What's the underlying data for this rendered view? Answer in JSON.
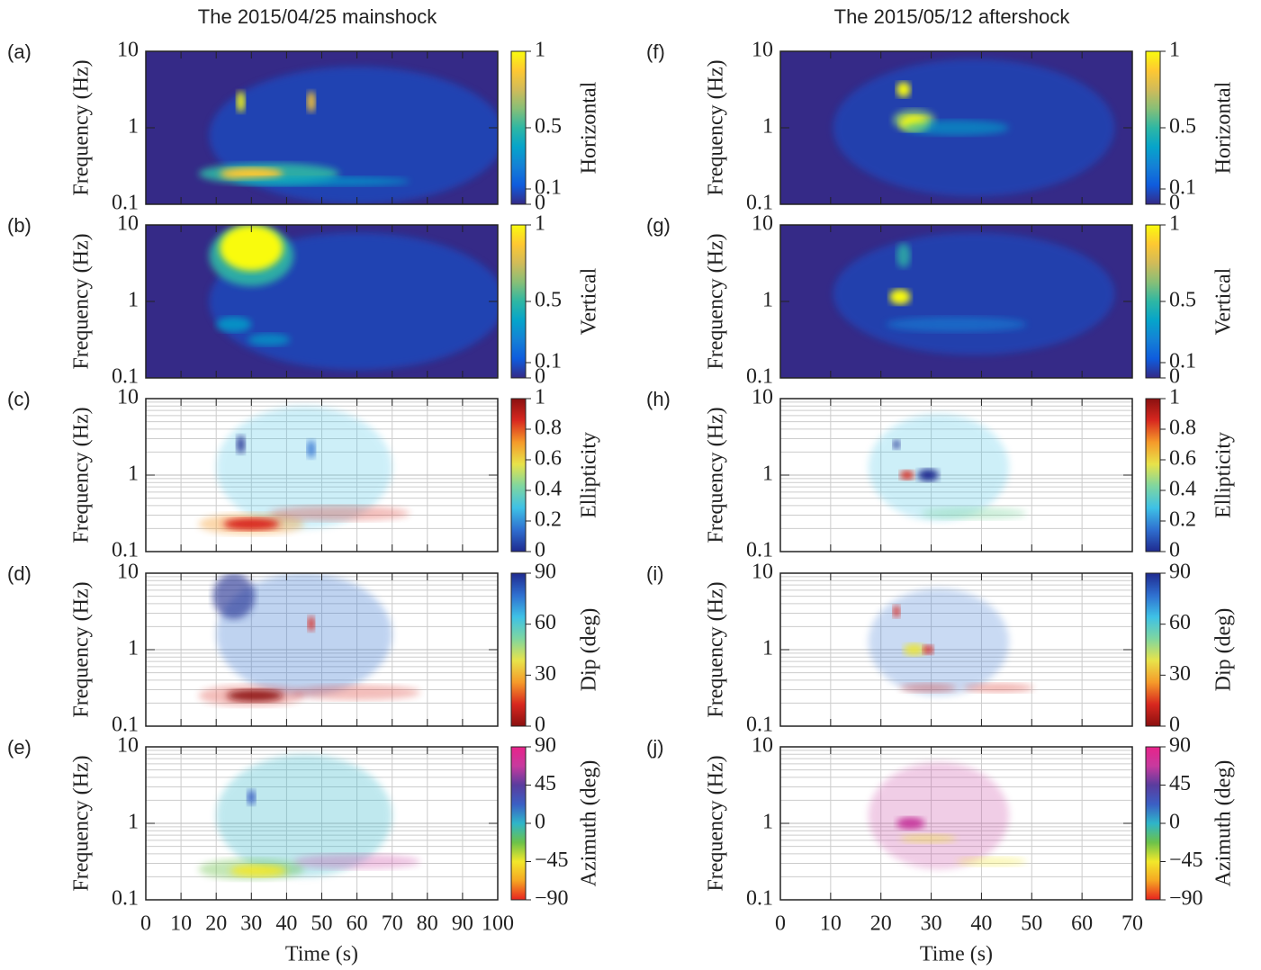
{
  "chart_data": [
    {
      "type": "heatmap",
      "title": "The 2015/04/25 mainshock",
      "xlabel": "Time (s)",
      "xlim": [
        0,
        100
      ],
      "xticks": [
        0,
        10,
        20,
        30,
        40,
        50,
        60,
        70,
        80,
        90,
        100
      ],
      "panels": [
        {
          "label": "(a)",
          "ylabel": "Frequency (Hz)",
          "ylim": [
            0.1,
            10
          ],
          "yticks": [
            0.1,
            1,
            10
          ],
          "log_y": true,
          "grid": false,
          "colorbar": {
            "label": "Horizontal",
            "lim": [
              0,
              1
            ],
            "ticks": [
              0,
              0.1,
              0.5,
              1
            ],
            "colormap": [
              "#352a87",
              "#0f5cdd",
              "#1481d6",
              "#06a4ca",
              "#2eb7a4",
              "#87bf77",
              "#d1bb59",
              "#fec832",
              "#f9fb0e"
            ]
          }
        },
        {
          "label": "(b)",
          "ylabel": "Frequency (Hz)",
          "ylim": [
            0.1,
            10
          ],
          "yticks": [
            0.1,
            1,
            10
          ],
          "log_y": true,
          "grid": false,
          "colorbar": {
            "label": "Vertical",
            "lim": [
              0,
              1
            ],
            "ticks": [
              0,
              0.1,
              0.5,
              1
            ],
            "colormap": [
              "#352a87",
              "#0f5cdd",
              "#1481d6",
              "#06a4ca",
              "#2eb7a4",
              "#87bf77",
              "#d1bb59",
              "#fec832",
              "#f9fb0e"
            ]
          }
        },
        {
          "label": "(c)",
          "ylabel": "Frequency (Hz)",
          "ylim": [
            0.1,
            10
          ],
          "yticks": [
            0.1,
            1,
            10
          ],
          "log_y": true,
          "grid": true,
          "colorbar": {
            "label": "Ellipticity",
            "lim": [
              0,
              1
            ],
            "ticks": [
              0,
              0.2,
              0.4,
              0.6,
              0.8,
              1
            ],
            "colormap": [
              "#1f2a8f",
              "#2f6fd0",
              "#3ec1e6",
              "#7fd6a0",
              "#e8e34a",
              "#f59a2a",
              "#d8281f",
              "#8b1010"
            ]
          }
        },
        {
          "label": "(d)",
          "ylabel": "Frequency (Hz)",
          "ylim": [
            0.1,
            10
          ],
          "yticks": [
            0.1,
            1,
            10
          ],
          "log_y": true,
          "grid": true,
          "colorbar": {
            "label": "Dip (deg)",
            "lim": [
              0,
              90
            ],
            "ticks": [
              0,
              30,
              60,
              90
            ],
            "colormap": [
              "#8b1010",
              "#d8281f",
              "#f59a2a",
              "#e8e34a",
              "#7fd6a0",
              "#3ec1e6",
              "#2f6fd0",
              "#1f2a8f"
            ]
          }
        },
        {
          "label": "(e)",
          "ylabel": "Frequency (Hz)",
          "ylim": [
            0.1,
            10
          ],
          "yticks": [
            0.1,
            1,
            10
          ],
          "log_y": true,
          "grid": true,
          "colorbar": {
            "label": "Azimuth (deg)",
            "lim": [
              -90,
              90
            ],
            "ticks": [
              {
                "value": -90,
                "label": "−90"
              },
              {
                "value": -45,
                "label": "−45"
              },
              0,
              45,
              90
            ],
            "colormap": [
              "#e8231f",
              "#f5a623",
              "#f2e82b",
              "#6cc24a",
              "#2fb5c9",
              "#3b5fc4",
              "#5a3c9e",
              "#c73a9e",
              "#e8238a"
            ]
          }
        }
      ]
    },
    {
      "type": "heatmap",
      "title": "The 2015/05/12 aftershock",
      "xlabel": "Time (s)",
      "xlim": [
        0,
        70
      ],
      "xticks": [
        0,
        10,
        20,
        30,
        40,
        50,
        60,
        70
      ],
      "panels": [
        {
          "label": "(f)",
          "ylabel": "Frequency (Hz)",
          "ylim": [
            0.1,
            10
          ],
          "yticks": [
            0.1,
            1,
            10
          ],
          "log_y": true,
          "grid": false,
          "colorbar": {
            "label": "Horizontal",
            "lim": [
              0,
              1
            ],
            "ticks": [
              0,
              0.1,
              0.5,
              1
            ],
            "colormap": [
              "#352a87",
              "#0f5cdd",
              "#1481d6",
              "#06a4ca",
              "#2eb7a4",
              "#87bf77",
              "#d1bb59",
              "#fec832",
              "#f9fb0e"
            ]
          }
        },
        {
          "label": "(g)",
          "ylabel": "Frequency (Hz)",
          "ylim": [
            0.1,
            10
          ],
          "yticks": [
            0.1,
            1,
            10
          ],
          "log_y": true,
          "grid": false,
          "colorbar": {
            "label": "Vertical",
            "lim": [
              0,
              1
            ],
            "ticks": [
              0,
              0.1,
              0.5,
              1
            ],
            "colormap": [
              "#352a87",
              "#0f5cdd",
              "#1481d6",
              "#06a4ca",
              "#2eb7a4",
              "#87bf77",
              "#d1bb59",
              "#fec832",
              "#f9fb0e"
            ]
          }
        },
        {
          "label": "(h)",
          "ylabel": "Frequency (Hz)",
          "ylim": [
            0.1,
            10
          ],
          "yticks": [
            0.1,
            1,
            10
          ],
          "log_y": true,
          "grid": true,
          "colorbar": {
            "label": "Ellipticity",
            "lim": [
              0,
              1
            ],
            "ticks": [
              0,
              0.2,
              0.4,
              0.6,
              0.8,
              1
            ],
            "colormap": [
              "#1f2a8f",
              "#2f6fd0",
              "#3ec1e6",
              "#7fd6a0",
              "#e8e34a",
              "#f59a2a",
              "#d8281f",
              "#8b1010"
            ]
          }
        },
        {
          "label": "(i)",
          "ylabel": "Frequency (Hz)",
          "ylim": [
            0.1,
            10
          ],
          "yticks": [
            0.1,
            1,
            10
          ],
          "log_y": true,
          "grid": true,
          "colorbar": {
            "label": "Dip (deg)",
            "lim": [
              0,
              90
            ],
            "ticks": [
              0,
              30,
              60,
              90
            ],
            "colormap": [
              "#8b1010",
              "#d8281f",
              "#f59a2a",
              "#e8e34a",
              "#7fd6a0",
              "#3ec1e6",
              "#2f6fd0",
              "#1f2a8f"
            ]
          }
        },
        {
          "label": "(j)",
          "ylabel": "Frequency (Hz)",
          "ylim": [
            0.1,
            10
          ],
          "yticks": [
            0.1,
            1,
            10
          ],
          "log_y": true,
          "grid": true,
          "colorbar": {
            "label": "Azimuth (deg)",
            "lim": [
              -90,
              90
            ],
            "ticks": [
              {
                "value": -90,
                "label": "−90"
              },
              {
                "value": -45,
                "label": "−45"
              },
              0,
              45,
              90
            ],
            "colormap": [
              "#e8231f",
              "#f5a623",
              "#f2e82b",
              "#6cc24a",
              "#2fb5c9",
              "#3b5fc4",
              "#5a3c9e",
              "#c73a9e",
              "#e8238a"
            ]
          }
        }
      ]
    }
  ]
}
